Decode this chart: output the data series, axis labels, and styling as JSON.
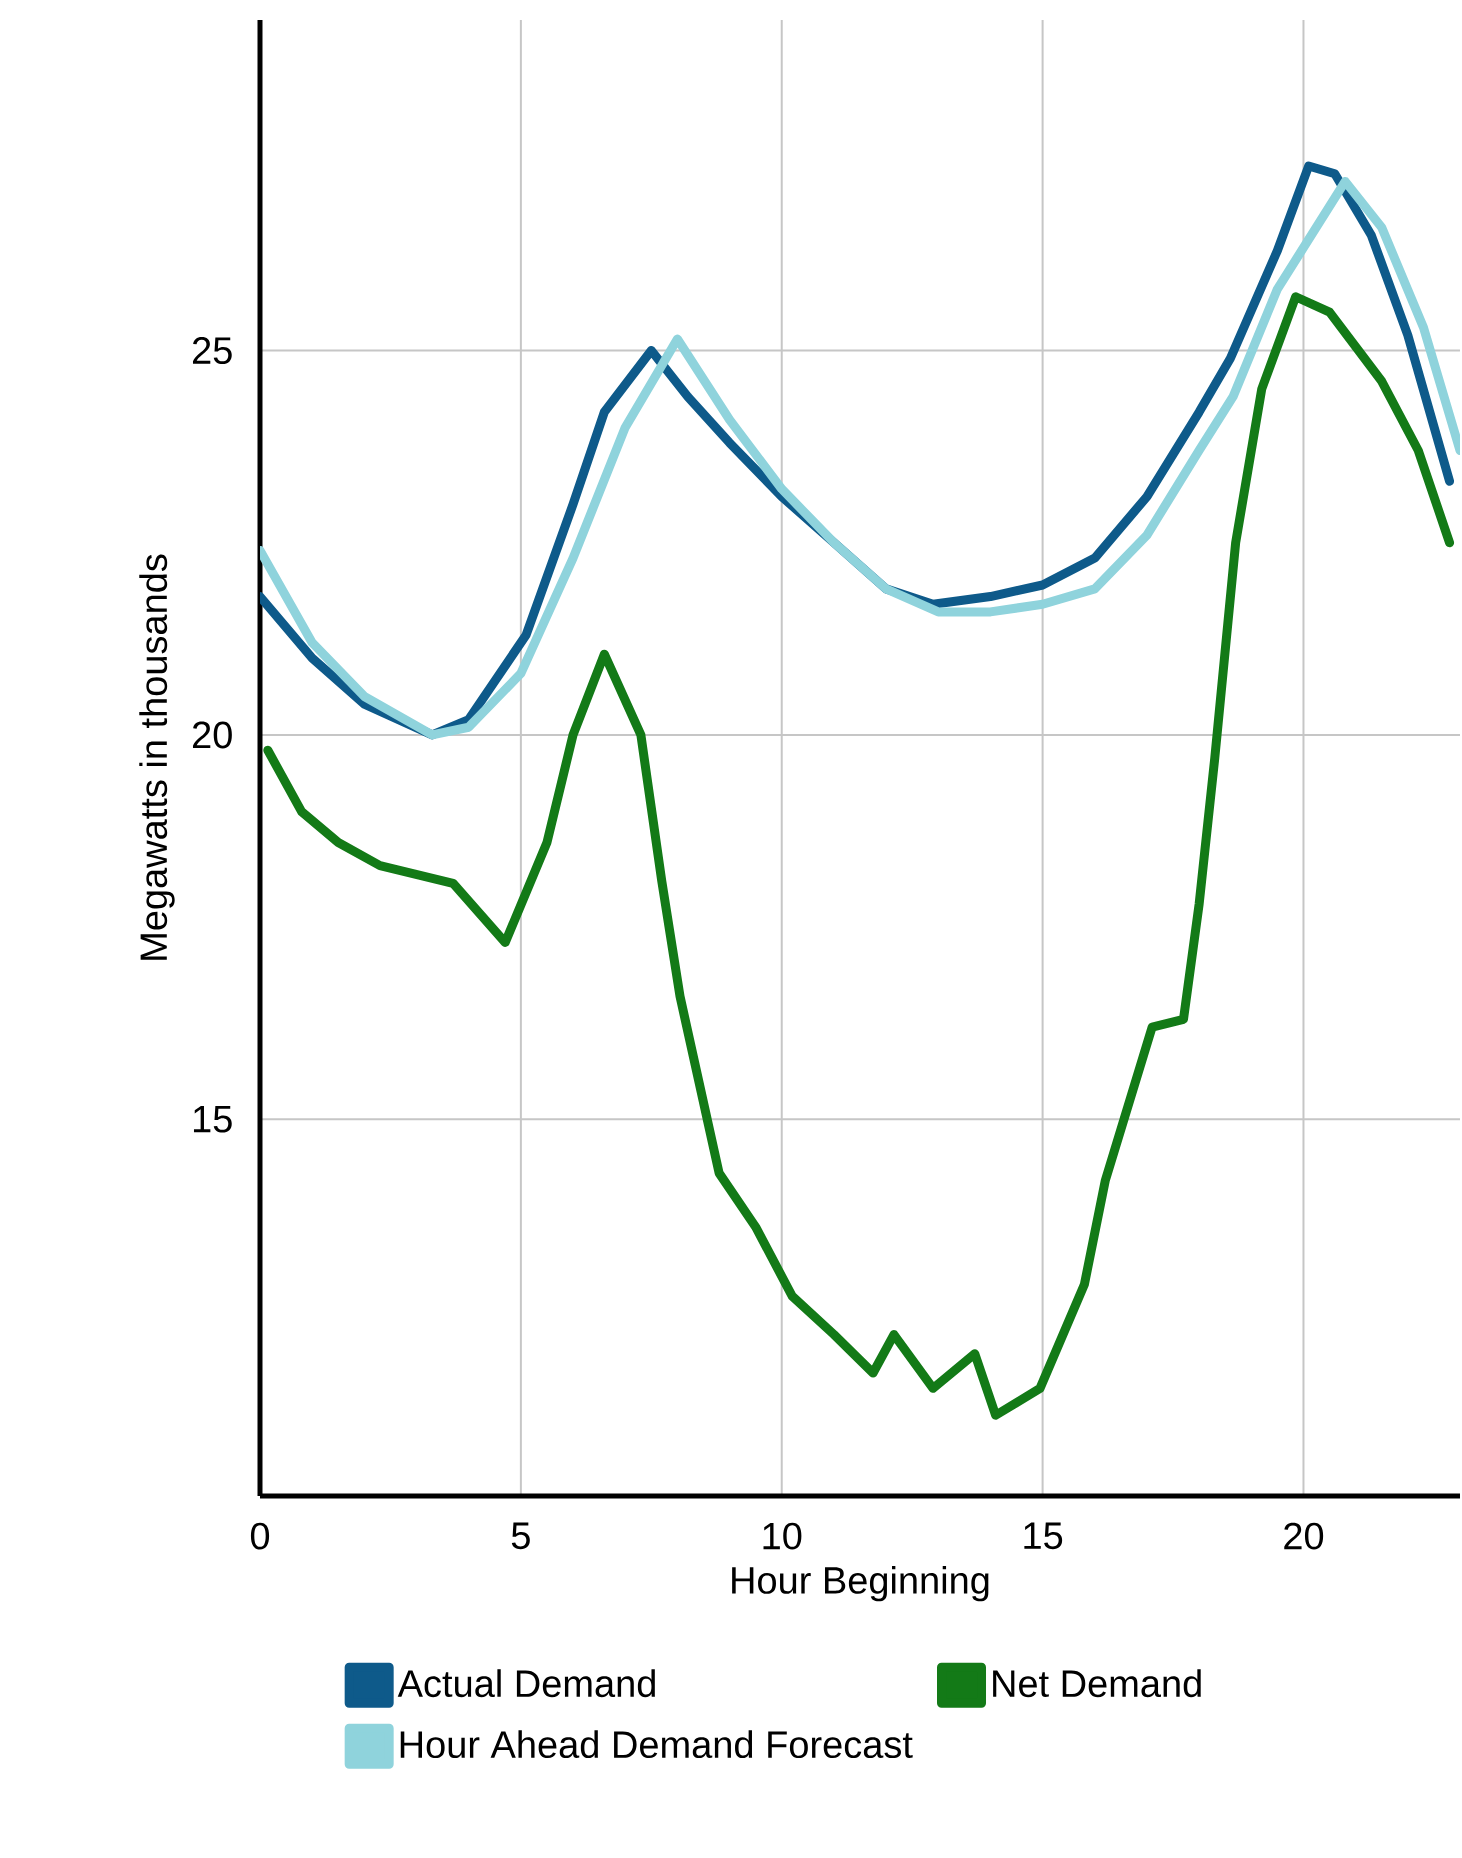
{
  "chart_data": {
    "type": "line",
    "xlabel": "Hour Beginning",
    "ylabel": "Megawatts in thousands",
    "xlim": [
      0,
      23
    ],
    "ylim": [
      10.1,
      29.3
    ],
    "xticks": [
      0,
      5,
      10,
      15,
      20
    ],
    "yticks": [
      15,
      20,
      25
    ],
    "grid": true,
    "legend": "bottom",
    "marker": "none",
    "line_style": "solid",
    "series": [
      {
        "name": "Actual Demand",
        "color": "#0e5a8a",
        "x": [
          0,
          1,
          2,
          3.3,
          4,
          5.1,
          6,
          6.6,
          7.5,
          8.2,
          9,
          10,
          11,
          12,
          12.9,
          14,
          15,
          16,
          17,
          18,
          18.6,
          19.5,
          20.1,
          20.6,
          21.3,
          22,
          22.8
        ],
        "values": [
          21.8,
          21.0,
          20.4,
          20.0,
          20.2,
          21.3,
          23.0,
          24.2,
          25.0,
          24.4,
          23.8,
          23.1,
          22.5,
          21.9,
          21.7,
          21.8,
          21.95,
          22.3,
          23.1,
          24.2,
          24.9,
          26.3,
          27.4,
          27.3,
          26.5,
          25.2,
          23.3
        ]
      },
      {
        "name": "Net Demand",
        "color": "#137a17",
        "x": [
          0.15,
          0.8,
          1.5,
          2.3,
          3.7,
          4.7,
          5.5,
          6.0,
          6.6,
          7.3,
          7.7,
          8.05,
          8.8,
          9.5,
          10.2,
          11,
          11.75,
          12.15,
          12.9,
          13.7,
          14.1,
          14.95,
          15.8,
          16.2,
          17.1,
          17.7,
          18.0,
          18.3,
          18.7,
          19.2,
          19.85,
          20.5,
          21.5,
          22.2,
          22.8
        ],
        "values": [
          19.8,
          19.0,
          18.6,
          18.3,
          18.07,
          17.3,
          18.6,
          20.0,
          21.05,
          20.0,
          18.1,
          16.6,
          14.3,
          13.6,
          12.7,
          12.2,
          11.7,
          12.2,
          11.5,
          11.95,
          11.15,
          11.5,
          12.85,
          14.2,
          16.2,
          16.3,
          17.8,
          19.7,
          22.5,
          24.5,
          25.7,
          25.5,
          24.6,
          23.7,
          22.5
        ]
      },
      {
        "name": "Hour Ahead Demand Forecast",
        "color": "#8fd3dc",
        "x": [
          0,
          1,
          2,
          3.3,
          4,
          5,
          6,
          7,
          8.0,
          9,
          10,
          11,
          12,
          13,
          14,
          15,
          16,
          17,
          18,
          18.65,
          19.5,
          20.8,
          21.5,
          22.3,
          23
        ],
        "values": [
          22.4,
          21.2,
          20.5,
          20.0,
          20.1,
          20.8,
          22.3,
          24.0,
          25.15,
          24.1,
          23.2,
          22.5,
          21.9,
          21.6,
          21.6,
          21.7,
          21.9,
          22.6,
          23.7,
          24.4,
          25.8,
          27.2,
          26.6,
          25.3,
          23.7
        ]
      }
    ]
  }
}
